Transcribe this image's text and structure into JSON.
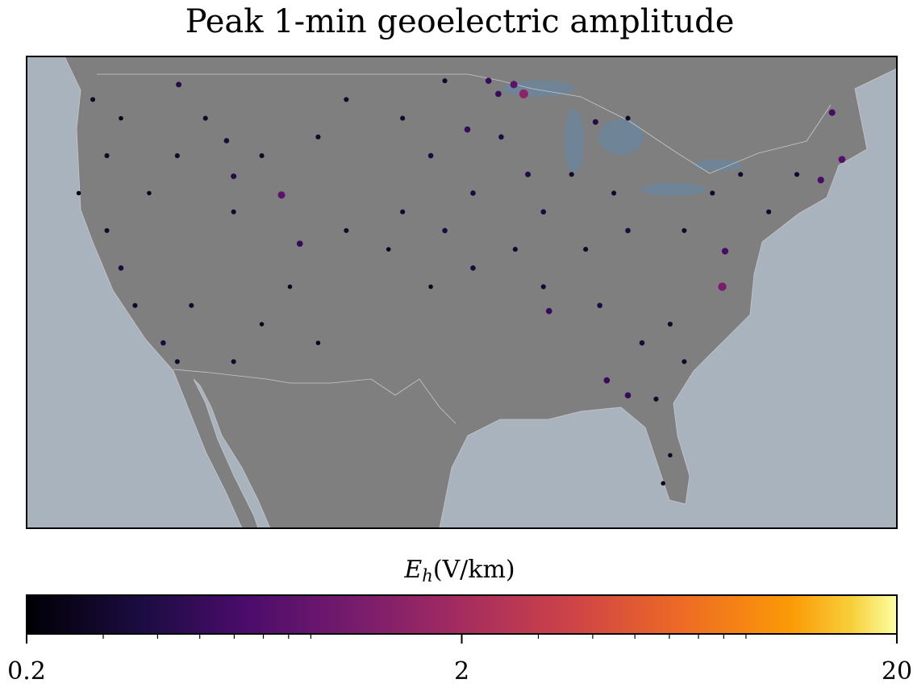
{
  "chart_data": {
    "type": "map",
    "title": "Peak 1-min geoelectric amplitude",
    "colorbar_label": {
      "symbol": "E",
      "subscript": "h",
      "unit": "(V/km)"
    },
    "xlim": [
      -126.7,
      -64.9
    ],
    "ylim": [
      24.1,
      49.3
    ],
    "colorbar": {
      "lim": [
        0.2,
        20
      ],
      "ticks": [
        0.2,
        2,
        20
      ],
      "minor_ticks": [
        0.3,
        0.4,
        0.5,
        0.6,
        0.7,
        0.8,
        0.9,
        3,
        4,
        5,
        6,
        7,
        8,
        9
      ],
      "scale": "log",
      "colormap": "inferno"
    },
    "points": {
      "x": [
        -91.4,
        -92.1,
        -93.9,
        -93.2,
        -95.4,
        -91.1,
        -108.6,
        -112.0,
        -112.5,
        -107.3,
        -115.9,
        -77.3,
        -77.1,
        -69.5,
        -68.8,
        -70.3,
        -85.5,
        -84.0,
        -89.6,
        -86.3,
        -122,
        -120,
        -121,
        -123,
        -121,
        -120,
        -119,
        -117,
        -116,
        -118,
        -116,
        -114,
        -112,
        -110,
        -106,
        -104,
        -100,
        -98,
        -100,
        -97,
        -95,
        -98,
        -101,
        -104,
        -108,
        -106,
        -110,
        -112,
        -115,
        -90,
        -88,
        -85,
        -84,
        -87,
        -90,
        -86,
        -83,
        -81,
        -80,
        -82,
        -81,
        -81.5,
        -80,
        -78,
        -76,
        -74,
        -72,
        -93,
        -95,
        -92,
        -84,
        -97
      ],
      "y": [
        47.3,
        47.8,
        48.0,
        47.3,
        45.4,
        43.0,
        41.9,
        42.9,
        44.8,
        39.3,
        47.8,
        37.0,
        38.9,
        46.3,
        43.8,
        42.7,
        32.0,
        31.2,
        35.7,
        45.8,
        47,
        46,
        44,
        42,
        40,
        38,
        36,
        34,
        33,
        42,
        44,
        46,
        41,
        44,
        45,
        47,
        46,
        44,
        41,
        40,
        38,
        37,
        39,
        40,
        37,
        34,
        35,
        33,
        36,
        41,
        43,
        42,
        40,
        39,
        37,
        36,
        34,
        35,
        33,
        31,
        28,
        26.5,
        40,
        42,
        43,
        41,
        43,
        45,
        42,
        39,
        46,
        48
      ],
      "values": [
        1.5,
        0.8,
        0.5,
        0.5,
        0.5,
        0.4,
        0.8,
        0.4,
        0.35,
        0.5,
        0.4,
        1.2,
        0.6,
        0.6,
        0.7,
        0.6,
        0.5,
        0.5,
        0.5,
        0.4,
        0.3,
        0.25,
        0.3,
        0.25,
        0.3,
        0.35,
        0.3,
        0.35,
        0.3,
        0.25,
        0.3,
        0.3,
        0.3,
        0.3,
        0.3,
        0.3,
        0.3,
        0.35,
        0.3,
        0.35,
        0.35,
        0.25,
        0.25,
        0.3,
        0.25,
        0.25,
        0.25,
        0.3,
        0.3,
        0.35,
        0.3,
        0.3,
        0.35,
        0.3,
        0.3,
        0.35,
        0.35,
        0.3,
        0.3,
        0.3,
        0.25,
        0.25,
        0.3,
        0.3,
        0.3,
        0.3,
        0.3,
        0.35,
        0.35,
        0.3,
        0.3,
        0.3
      ]
    }
  }
}
